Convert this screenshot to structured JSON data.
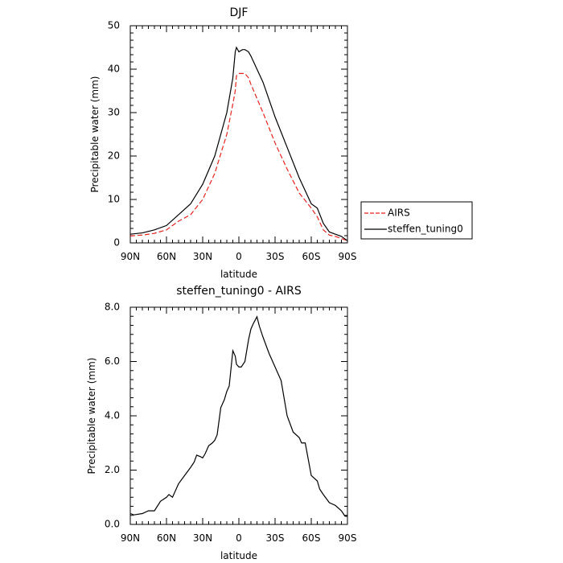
{
  "chart_data": [
    {
      "type": "line",
      "title": "DJF",
      "xlabel": "latitude",
      "ylabel": "Precipitable water (mm)",
      "xlim": [
        -90,
        90
      ],
      "ylim": [
        0,
        50
      ],
      "x_ticks": [
        -90,
        -60,
        -30,
        0,
        30,
        60,
        90
      ],
      "x_tick_labels": [
        "90N",
        "60N",
        "30N",
        "0",
        "30S",
        "60S",
        "90S"
      ],
      "y_ticks": [
        0,
        10,
        20,
        30,
        40,
        50
      ],
      "y_tick_labels": [
        "0",
        "10",
        "20",
        "30",
        "40",
        "50"
      ],
      "legend_position": "right",
      "series": [
        {
          "name": "AIRS",
          "color": "#e8231d",
          "dash": "dashed",
          "x": [
            -90,
            -80,
            -70,
            -60,
            -50,
            -40,
            -30,
            -20,
            -10,
            -5,
            -3,
            -2,
            0,
            5,
            8,
            10,
            20,
            30,
            40,
            50,
            60,
            65,
            70,
            75,
            80,
            85,
            90
          ],
          "y": [
            1.6,
            1.8,
            2.2,
            3.0,
            5.0,
            6.5,
            10.0,
            16.0,
            25.0,
            32.0,
            35.0,
            38.5,
            39.0,
            39.0,
            38.0,
            36.5,
            30.0,
            23.0,
            17.0,
            11.5,
            8.0,
            6.0,
            3.0,
            1.8,
            1.5,
            1.0,
            0.5
          ]
        },
        {
          "name": "steffen_tuning0",
          "color": "#000000",
          "dash": "solid",
          "x": [
            -90,
            -80,
            -70,
            -60,
            -50,
            -40,
            -30,
            -20,
            -10,
            -5,
            -4,
            -3,
            -2,
            0,
            3,
            5,
            8,
            10,
            20,
            30,
            40,
            50,
            60,
            65,
            70,
            75,
            80,
            85,
            90
          ],
          "y": [
            2.0,
            2.3,
            3.0,
            4.0,
            6.5,
            9.0,
            13.5,
            20.0,
            30.0,
            38.0,
            41.0,
            44.0,
            45.0,
            44.0,
            44.5,
            44.5,
            44.0,
            43.0,
            37.0,
            29.0,
            22.0,
            15.0,
            9.0,
            8.0,
            4.5,
            2.5,
            2.0,
            1.5,
            0.5
          ]
        }
      ]
    },
    {
      "type": "line",
      "title": "steffen_tuning0 - AIRS",
      "xlabel": "latitude",
      "ylabel": "Precipitable water (mm)",
      "xlim": [
        -90,
        90
      ],
      "ylim": [
        0,
        8
      ],
      "x_ticks": [
        -90,
        -60,
        -30,
        0,
        30,
        60,
        90
      ],
      "x_tick_labels": [
        "90N",
        "60N",
        "30N",
        "0",
        "30S",
        "60S",
        "90S"
      ],
      "y_ticks": [
        0,
        2,
        4,
        6,
        8
      ],
      "y_tick_labels": [
        "0.0",
        "2.0",
        "4.0",
        "6.0",
        "8.0"
      ],
      "series": [
        {
          "color": "#000000",
          "dash": "solid",
          "x": [
            -90,
            -87,
            -80,
            -75,
            -70,
            -65,
            -60,
            -58,
            -55,
            -50,
            -45,
            -40,
            -37,
            -35,
            -32,
            -30,
            -28,
            -25,
            -22,
            -20,
            -18,
            -15,
            -12,
            -10,
            -8,
            -5,
            -3,
            -2,
            0,
            2,
            5,
            8,
            10,
            12,
            15,
            17,
            20,
            25,
            30,
            35,
            40,
            45,
            50,
            52,
            55,
            60,
            65,
            67,
            70,
            75,
            80,
            85,
            88,
            90
          ],
          "y": [
            0.4,
            0.35,
            0.4,
            0.5,
            0.5,
            0.85,
            1.0,
            1.1,
            1.0,
            1.5,
            1.8,
            2.1,
            2.3,
            2.55,
            2.5,
            2.45,
            2.6,
            2.9,
            3.0,
            3.1,
            3.3,
            4.3,
            4.6,
            4.9,
            5.1,
            6.4,
            6.2,
            5.9,
            5.8,
            5.8,
            6.0,
            6.8,
            7.2,
            7.4,
            7.65,
            7.3,
            6.9,
            6.3,
            5.8,
            5.3,
            4.0,
            3.4,
            3.2,
            3.0,
            3.0,
            1.8,
            1.6,
            1.3,
            1.1,
            0.8,
            0.7,
            0.5,
            0.3,
            0.3
          ]
        }
      ]
    }
  ]
}
